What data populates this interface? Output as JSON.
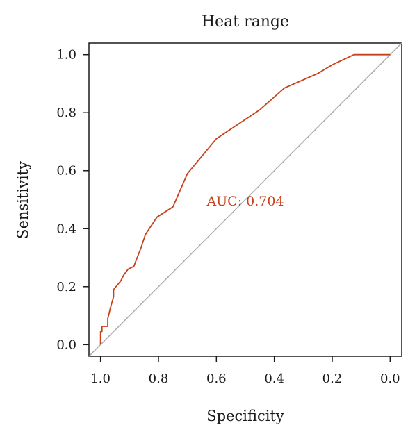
{
  "chart_data": {
    "type": "line",
    "title": "Heat range",
    "xlabel": "Specificity",
    "ylabel": "Sensitivity",
    "xlim": [
      1.04,
      -0.04
    ],
    "ylim": [
      -0.04,
      1.04
    ],
    "x_reversed": true,
    "xticks": [
      1.0,
      0.8,
      0.6,
      0.4,
      0.2,
      0.0
    ],
    "xtick_labels": [
      "1.0",
      "0.8",
      "0.6",
      "0.4",
      "0.2",
      "0.0"
    ],
    "yticks": [
      0.0,
      0.2,
      0.4,
      0.6,
      0.8,
      1.0
    ],
    "ytick_labels": [
      "0.0",
      "0.2",
      "0.4",
      "0.6",
      "0.8",
      "1.0"
    ],
    "grid": false,
    "series": [
      {
        "color": "#c8401a",
        "x": [
          1.0,
          1.0,
          0.995,
          0.995,
          0.975,
          0.975,
          0.965,
          0.955,
          0.955,
          0.93,
          0.92,
          0.905,
          0.885,
          0.86,
          0.845,
          0.805,
          0.75,
          0.7,
          0.6,
          0.45,
          0.365,
          0.25,
          0.2,
          0.125,
          0.0
        ],
        "y": [
          0.0,
          0.045,
          0.045,
          0.063,
          0.063,
          0.09,
          0.13,
          0.165,
          0.19,
          0.22,
          0.24,
          0.26,
          0.27,
          0.335,
          0.38,
          0.44,
          0.475,
          0.59,
          0.71,
          0.81,
          0.885,
          0.935,
          0.965,
          1.0,
          1.0
        ]
      },
      {
        "color": "#a6a6a6",
        "x": [
          1.04,
          -0.04
        ],
        "y": [
          -0.04,
          1.04
        ]
      }
    ],
    "annotations": [
      {
        "text": "AUC: 0.704",
        "x": 0.5,
        "y": 0.48,
        "color": "#c8401a"
      }
    ]
  }
}
